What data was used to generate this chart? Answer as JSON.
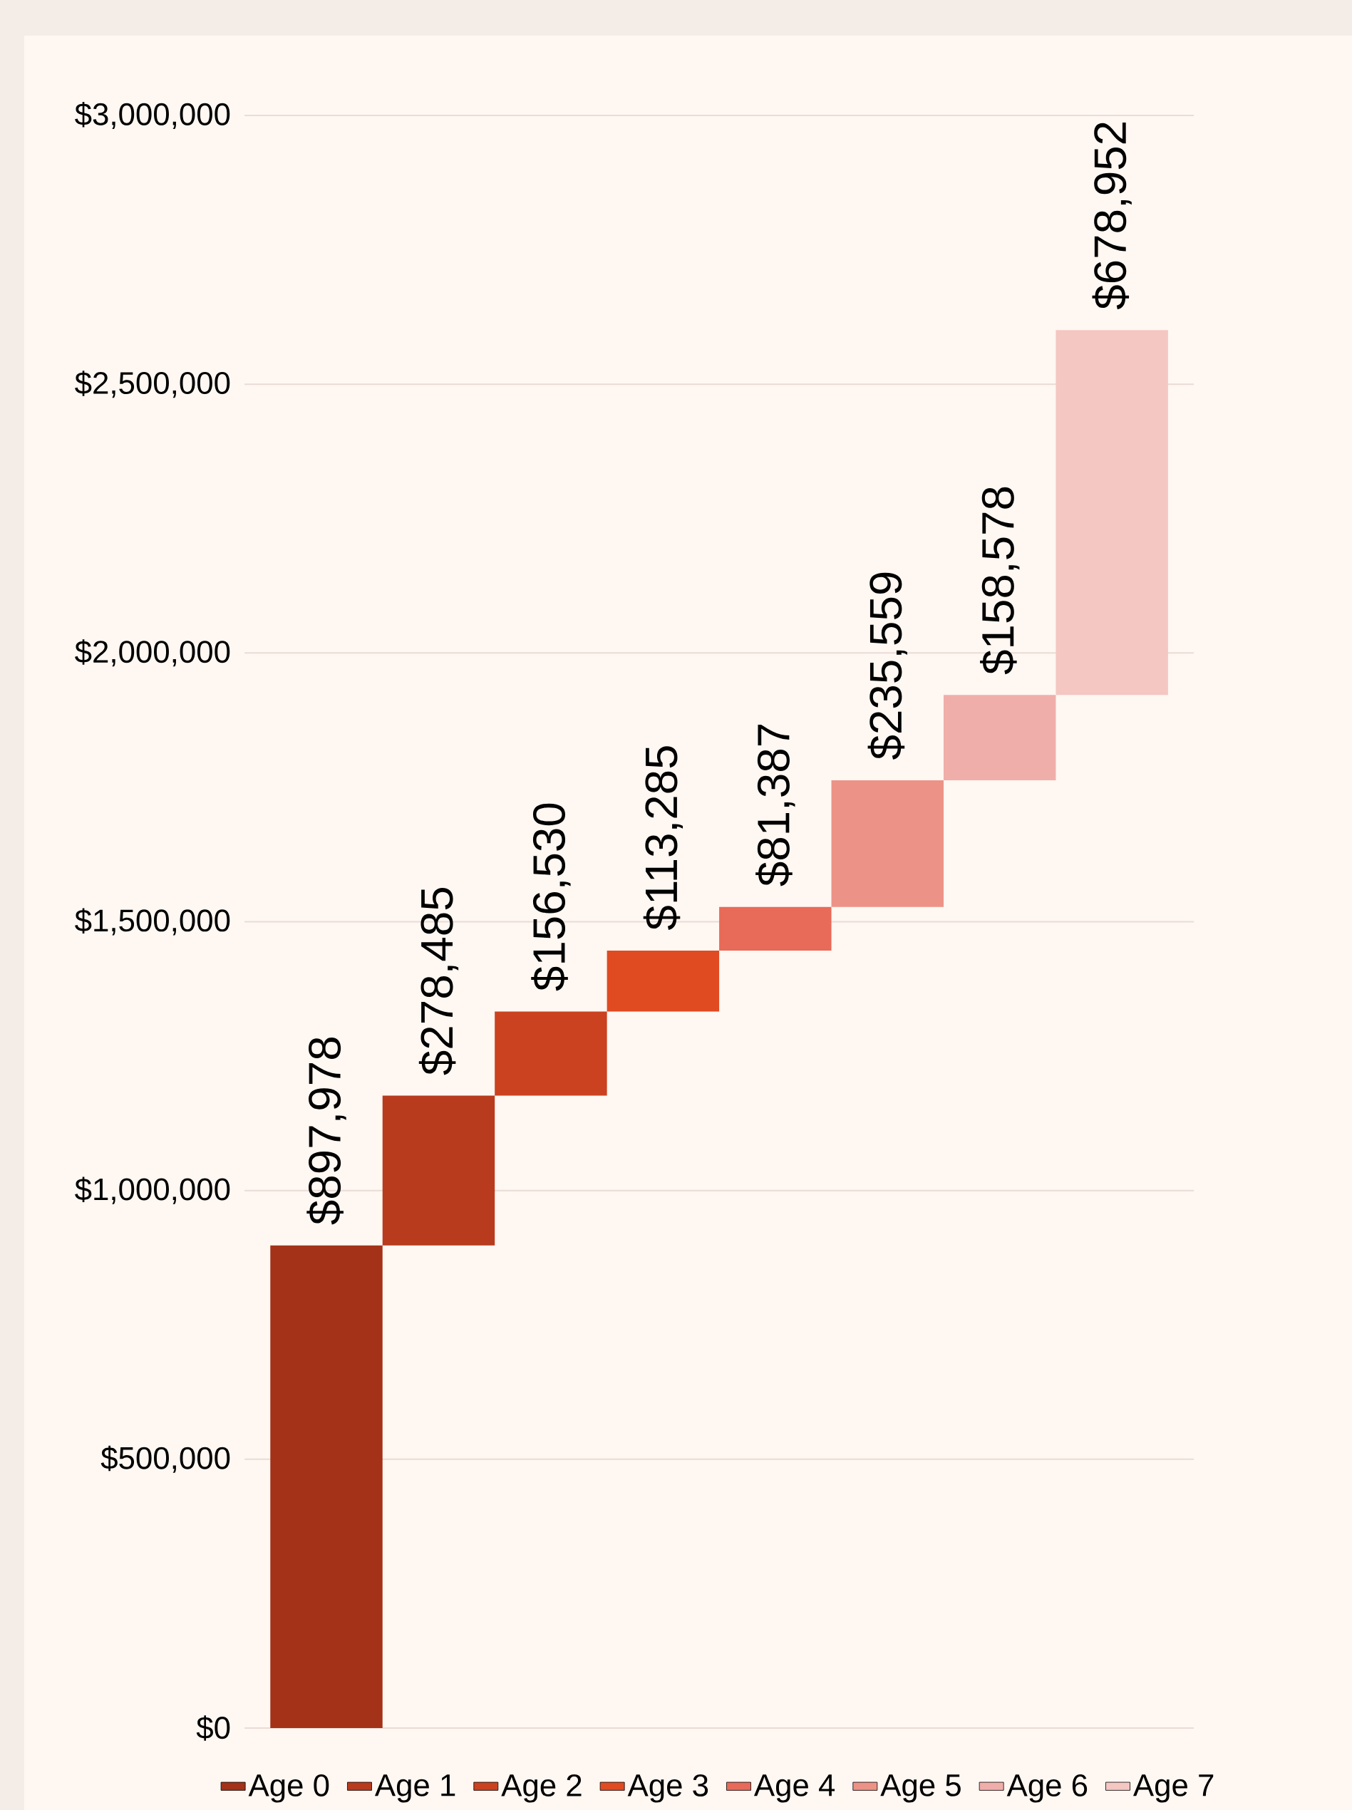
{
  "chart_data": {
    "type": "bar",
    "categories": [
      null,
      null,
      null,
      null,
      null,
      null,
      null,
      null
    ],
    "series": [
      {
        "name": "Age 0",
        "color": "#a33218",
        "values": [
          897978,
          null,
          null,
          null,
          null,
          null,
          null,
          null
        ],
        "base": [
          0,
          null,
          null,
          null,
          null,
          null,
          null,
          null
        ],
        "value_labels": [
          "$897,978",
          null,
          null,
          null,
          null,
          null,
          null,
          null
        ]
      },
      {
        "name": "Age 1",
        "color": "#b83b1e",
        "values": [
          null,
          278485,
          null,
          null,
          null,
          null,
          null,
          null
        ],
        "base": [
          null,
          897978,
          null,
          null,
          null,
          null,
          null,
          null
        ],
        "value_labels": [
          null,
          "$278,485",
          null,
          null,
          null,
          null,
          null,
          null
        ]
      },
      {
        "name": "Age 2",
        "color": "#cb4220",
        "values": [
          null,
          null,
          156530,
          null,
          null,
          null,
          null,
          null
        ],
        "base": [
          null,
          null,
          1176463,
          null,
          null,
          null,
          null,
          null
        ],
        "value_labels": [
          null,
          null,
          "$156,530",
          null,
          null,
          null,
          null,
          null
        ]
      },
      {
        "name": "Age 3",
        "color": "#e04b22",
        "values": [
          null,
          null,
          null,
          113285,
          null,
          null,
          null,
          null
        ],
        "base": [
          null,
          null,
          null,
          1332993,
          null,
          null,
          null,
          null
        ],
        "value_labels": [
          null,
          null,
          null,
          "$113,285",
          null,
          null,
          null,
          null
        ]
      },
      {
        "name": "Age 4",
        "color": "#e86a58",
        "values": [
          null,
          null,
          null,
          null,
          81387,
          null,
          null,
          null
        ],
        "base": [
          null,
          null,
          null,
          null,
          1446278,
          null,
          null,
          null
        ],
        "value_labels": [
          null,
          null,
          null,
          null,
          "$81,387",
          null,
          null,
          null
        ]
      },
      {
        "name": "Age 5",
        "color": "#ed9286",
        "values": [
          null,
          null,
          null,
          null,
          null,
          235559,
          null,
          null
        ],
        "base": [
          null,
          null,
          null,
          null,
          null,
          1527665,
          null,
          null
        ],
        "value_labels": [
          null,
          null,
          null,
          null,
          null,
          "$235,559",
          null,
          null
        ]
      },
      {
        "name": "Age 6",
        "color": "#f0aeaa",
        "values": [
          null,
          null,
          null,
          null,
          null,
          null,
          158578,
          null
        ],
        "base": [
          null,
          null,
          null,
          null,
          null,
          null,
          1763224,
          null
        ],
        "value_labels": [
          null,
          null,
          null,
          null,
          null,
          null,
          "$158,578",
          null
        ]
      },
      {
        "name": "Age 7",
        "color": "#f4c7c2",
        "values": [
          null,
          null,
          null,
          null,
          null,
          null,
          null,
          678952
        ],
        "base": [
          null,
          null,
          null,
          null,
          null,
          null,
          null,
          1921802
        ],
        "value_labels": [
          null,
          null,
          null,
          null,
          null,
          null,
          null,
          "$678,952"
        ]
      }
    ],
    "ylim": [
      0,
      3000000
    ],
    "yticks": [
      {
        "value": 0,
        "label": "$0"
      },
      {
        "value": 500000,
        "label": "$500,000"
      },
      {
        "value": 1000000,
        "label": "$1,000,000"
      },
      {
        "value": 1500000,
        "label": "$1,500,000"
      },
      {
        "value": 2000000,
        "label": "$2,000,000"
      },
      {
        "value": 2500000,
        "label": "$2,500,000"
      },
      {
        "value": 3000000,
        "label": "$3,000,000"
      }
    ],
    "grid": "y",
    "legend": "bottom"
  }
}
